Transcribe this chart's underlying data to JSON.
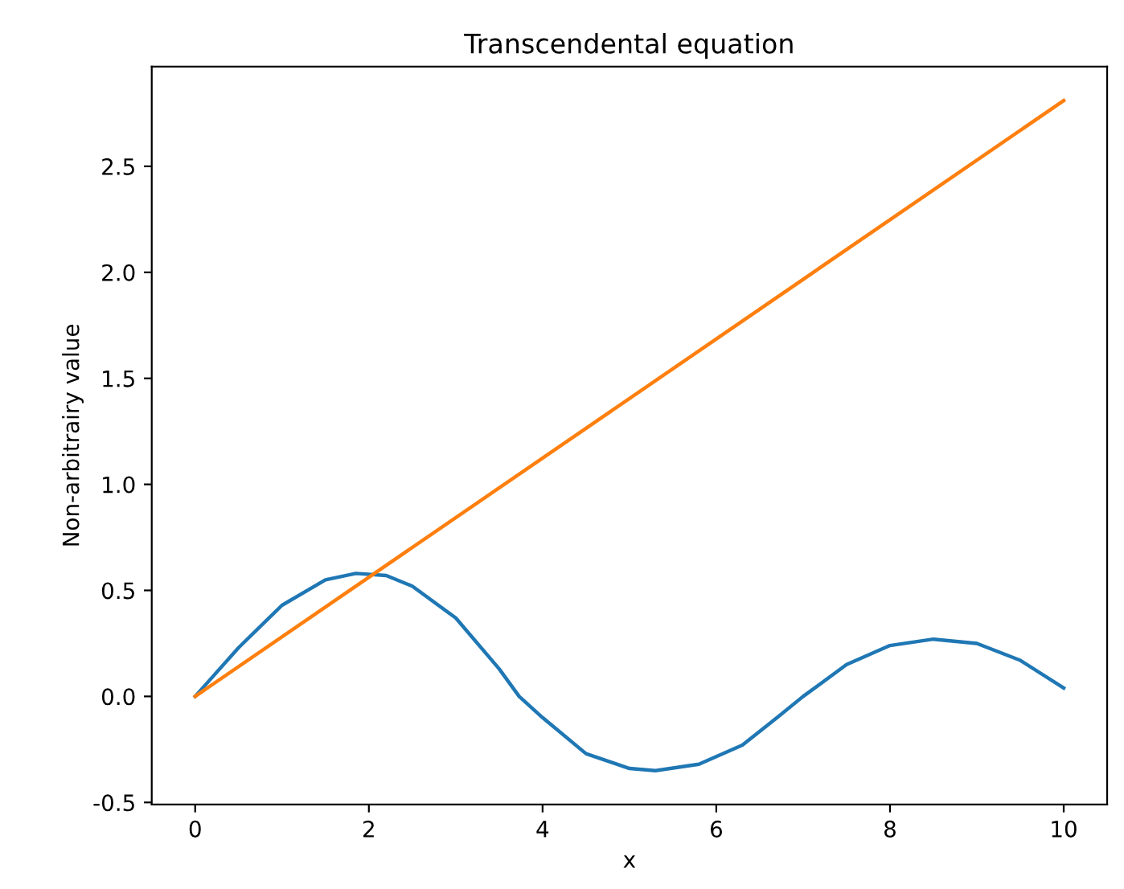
{
  "chart_data": {
    "type": "line",
    "title": "Transcendental equation",
    "xlabel": "x",
    "ylabel": "Non-arbitrairy value",
    "xlim": [
      -0.5,
      10.5
    ],
    "ylim": [
      -0.51,
      2.97
    ],
    "xticks": [
      0,
      2,
      4,
      6,
      8,
      10
    ],
    "yticks": [
      -0.5,
      {
        "value": 0,
        "label": "0.0"
      },
      0.5,
      {
        "value": 1,
        "label": "1.0"
      },
      1.5,
      {
        "value": 2,
        "label": "2.0"
      },
      2.5
    ],
    "series": [
      {
        "color": "#1f77b4",
        "x": [
          0,
          0.5,
          1,
          1.5,
          1.85,
          2.2,
          2.5,
          3,
          3.5,
          3.73,
          4,
          4.5,
          5,
          5.3,
          5.8,
          6.3,
          6.7,
          7,
          7.5,
          8,
          8.5,
          9,
          9.5,
          10
        ],
        "values": [
          0,
          0.23,
          0.43,
          0.55,
          0.58,
          0.57,
          0.52,
          0.37,
          0.13,
          0,
          -0.1,
          -0.27,
          -0.34,
          -0.35,
          -0.32,
          -0.23,
          -0.1,
          0,
          0.15,
          0.24,
          0.27,
          0.25,
          0.17,
          0.04
        ]
      },
      {
        "color": "#ff7f0e",
        "x": [
          0,
          10
        ],
        "values": [
          0,
          2.81
        ]
      }
    ],
    "grid": false,
    "legend": false
  }
}
